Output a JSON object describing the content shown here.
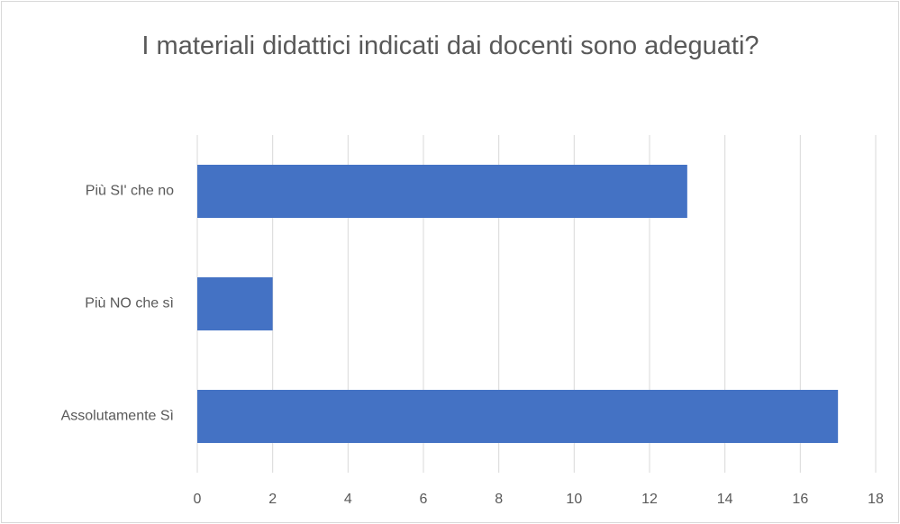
{
  "chart_data": {
    "type": "bar",
    "orientation": "horizontal",
    "title": "I materiali didattici indicati dai docenti sono adeguati?",
    "categories": [
      "Più SI' che no",
      "Più NO che sì",
      "Assolutamente Sì"
    ],
    "values": [
      13,
      2,
      17
    ],
    "color": "#4472c4",
    "xlim": [
      0,
      18
    ],
    "xticks": [
      0,
      2,
      4,
      6,
      8,
      10,
      12,
      14,
      16,
      18
    ],
    "grid": true
  }
}
